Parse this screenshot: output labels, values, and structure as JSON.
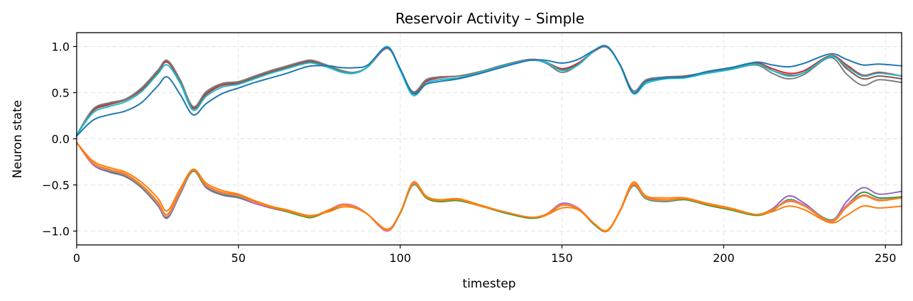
{
  "chart_data": {
    "type": "line",
    "title": "Reservoir Activity – Simple",
    "xlabel": "timestep",
    "ylabel": "Neuron state",
    "xlim": [
      0,
      255
    ],
    "ylim": [
      -1.15,
      1.15
    ],
    "xticks": [
      0,
      50,
      100,
      150,
      200,
      250
    ],
    "yticks": [
      -1.0,
      -0.5,
      0.0,
      0.5,
      1.0
    ],
    "xtick_labels": [
      "0",
      "50",
      "100",
      "150",
      "200",
      "250"
    ],
    "ytick_labels": [
      "−1.0",
      "−0.5",
      "0.0",
      "0.5",
      "1.0"
    ],
    "grid": true,
    "legend": "none",
    "x": [
      0,
      5,
      10,
      15,
      20,
      25,
      28,
      32,
      36,
      40,
      45,
      50,
      55,
      60,
      65,
      70,
      73,
      78,
      82,
      86,
      90,
      96,
      100,
      104,
      108,
      112,
      118,
      125,
      132,
      140,
      145,
      150,
      155,
      160,
      164,
      168,
      172,
      176,
      182,
      188,
      195,
      202,
      210,
      215,
      220,
      225,
      233,
      238,
      243,
      248,
      255
    ],
    "series": [
      {
        "color": "#d62728",
        "values": [
          0.04,
          0.3,
          0.37,
          0.42,
          0.53,
          0.72,
          0.83,
          0.62,
          0.33,
          0.48,
          0.58,
          0.6,
          0.66,
          0.72,
          0.77,
          0.82,
          0.83,
          0.78,
          0.73,
          0.72,
          0.78,
          0.98,
          0.75,
          0.5,
          0.62,
          0.66,
          0.68,
          0.73,
          0.8,
          0.85,
          0.83,
          0.76,
          0.82,
          0.95,
          0.99,
          0.8,
          0.52,
          0.62,
          0.66,
          0.68,
          0.72,
          0.76,
          0.82,
          0.76,
          0.71,
          0.74,
          0.9,
          0.8,
          0.69,
          0.72,
          0.68
        ]
      },
      {
        "color": "#8c564b",
        "values": [
          0.04,
          0.31,
          0.38,
          0.42,
          0.54,
          0.73,
          0.84,
          0.63,
          0.34,
          0.49,
          0.59,
          0.61,
          0.67,
          0.73,
          0.78,
          0.83,
          0.84,
          0.78,
          0.73,
          0.72,
          0.78,
          0.98,
          0.75,
          0.5,
          0.63,
          0.67,
          0.68,
          0.73,
          0.8,
          0.86,
          0.83,
          0.75,
          0.81,
          0.95,
          0.99,
          0.8,
          0.52,
          0.63,
          0.67,
          0.68,
          0.72,
          0.76,
          0.81,
          0.74,
          0.69,
          0.72,
          0.9,
          0.76,
          0.65,
          0.68,
          0.65
        ]
      },
      {
        "color": "#7f7f7f",
        "values": [
          0.04,
          0.32,
          0.39,
          0.43,
          0.55,
          0.74,
          0.85,
          0.64,
          0.35,
          0.51,
          0.6,
          0.62,
          0.68,
          0.74,
          0.79,
          0.84,
          0.85,
          0.79,
          0.74,
          0.72,
          0.78,
          0.98,
          0.75,
          0.51,
          0.64,
          0.67,
          0.68,
          0.73,
          0.8,
          0.86,
          0.82,
          0.72,
          0.8,
          0.95,
          0.99,
          0.8,
          0.52,
          0.64,
          0.67,
          0.67,
          0.71,
          0.75,
          0.8,
          0.71,
          0.65,
          0.7,
          0.88,
          0.7,
          0.58,
          0.64,
          0.61
        ]
      },
      {
        "color": "#17becf",
        "values": [
          0.04,
          0.28,
          0.35,
          0.4,
          0.51,
          0.7,
          0.8,
          0.6,
          0.31,
          0.46,
          0.56,
          0.59,
          0.65,
          0.71,
          0.76,
          0.81,
          0.82,
          0.77,
          0.72,
          0.71,
          0.78,
          1.0,
          0.74,
          0.47,
          0.6,
          0.64,
          0.66,
          0.72,
          0.79,
          0.85,
          0.83,
          0.74,
          0.8,
          0.96,
          1.0,
          0.79,
          0.49,
          0.6,
          0.65,
          0.66,
          0.71,
          0.75,
          0.81,
          0.74,
          0.68,
          0.72,
          0.89,
          0.78,
          0.68,
          0.71,
          0.68
        ]
      },
      {
        "color": "#1f77b4",
        "values": [
          0.03,
          0.2,
          0.26,
          0.3,
          0.39,
          0.57,
          0.67,
          0.48,
          0.26,
          0.38,
          0.49,
          0.55,
          0.61,
          0.66,
          0.71,
          0.77,
          0.79,
          0.79,
          0.77,
          0.77,
          0.8,
          0.99,
          0.76,
          0.49,
          0.59,
          0.62,
          0.65,
          0.71,
          0.78,
          0.85,
          0.85,
          0.82,
          0.86,
          0.96,
          1.0,
          0.8,
          0.5,
          0.62,
          0.66,
          0.67,
          0.73,
          0.77,
          0.83,
          0.8,
          0.78,
          0.82,
          0.92,
          0.86,
          0.8,
          0.81,
          0.79
        ]
      },
      {
        "color": "#9467bd",
        "values": [
          -0.04,
          -0.28,
          -0.36,
          -0.41,
          -0.53,
          -0.72,
          -0.86,
          -0.6,
          -0.35,
          -0.53,
          -0.61,
          -0.64,
          -0.7,
          -0.75,
          -0.79,
          -0.84,
          -0.85,
          -0.77,
          -0.71,
          -0.73,
          -0.82,
          -1.0,
          -0.8,
          -0.49,
          -0.64,
          -0.68,
          -0.67,
          -0.73,
          -0.79,
          -0.86,
          -0.82,
          -0.7,
          -0.75,
          -0.93,
          -1.0,
          -0.78,
          -0.5,
          -0.64,
          -0.67,
          -0.65,
          -0.71,
          -0.76,
          -0.82,
          -0.76,
          -0.62,
          -0.7,
          -0.89,
          -0.68,
          -0.53,
          -0.6,
          -0.57
        ]
      },
      {
        "color": "#2ca02c",
        "values": [
          -0.04,
          -0.27,
          -0.35,
          -0.4,
          -0.52,
          -0.71,
          -0.85,
          -0.59,
          -0.35,
          -0.52,
          -0.6,
          -0.63,
          -0.69,
          -0.74,
          -0.79,
          -0.84,
          -0.85,
          -0.78,
          -0.72,
          -0.74,
          -0.82,
          -1.0,
          -0.81,
          -0.5,
          -0.64,
          -0.68,
          -0.67,
          -0.73,
          -0.8,
          -0.86,
          -0.83,
          -0.72,
          -0.76,
          -0.93,
          -1.0,
          -0.78,
          -0.51,
          -0.65,
          -0.68,
          -0.66,
          -0.72,
          -0.77,
          -0.83,
          -0.78,
          -0.66,
          -0.72,
          -0.88,
          -0.72,
          -0.58,
          -0.64,
          -0.63
        ]
      },
      {
        "color": "#e377c2",
        "values": [
          -0.04,
          -0.27,
          -0.34,
          -0.39,
          -0.51,
          -0.7,
          -0.84,
          -0.58,
          -0.34,
          -0.51,
          -0.59,
          -0.62,
          -0.69,
          -0.74,
          -0.78,
          -0.83,
          -0.84,
          -0.77,
          -0.71,
          -0.73,
          -0.82,
          -1.0,
          -0.8,
          -0.49,
          -0.63,
          -0.67,
          -0.66,
          -0.73,
          -0.79,
          -0.85,
          -0.82,
          -0.71,
          -0.75,
          -0.92,
          -1.0,
          -0.78,
          -0.5,
          -0.64,
          -0.67,
          -0.65,
          -0.71,
          -0.76,
          -0.82,
          -0.77,
          -0.67,
          -0.72,
          -0.89,
          -0.72,
          -0.61,
          -0.66,
          -0.64
        ]
      },
      {
        "color": "#ff7f0e",
        "values": [
          -0.04,
          -0.24,
          -0.31,
          -0.36,
          -0.47,
          -0.64,
          -0.78,
          -0.54,
          -0.33,
          -0.48,
          -0.56,
          -0.6,
          -0.67,
          -0.73,
          -0.77,
          -0.82,
          -0.83,
          -0.79,
          -0.74,
          -0.75,
          -0.82,
          -0.98,
          -0.8,
          -0.47,
          -0.62,
          -0.66,
          -0.65,
          -0.72,
          -0.79,
          -0.85,
          -0.83,
          -0.75,
          -0.77,
          -0.92,
          -0.99,
          -0.77,
          -0.47,
          -0.62,
          -0.64,
          -0.64,
          -0.7,
          -0.75,
          -0.82,
          -0.79,
          -0.73,
          -0.77,
          -0.91,
          -0.83,
          -0.73,
          -0.75,
          -0.73
        ]
      },
      {
        "color": "#ff7f0e",
        "values": [
          -0.04,
          -0.26,
          -0.33,
          -0.38,
          -0.5,
          -0.68,
          -0.82,
          -0.56,
          -0.34,
          -0.5,
          -0.58,
          -0.61,
          -0.68,
          -0.74,
          -0.78,
          -0.83,
          -0.84,
          -0.77,
          -0.72,
          -0.74,
          -0.82,
          -0.99,
          -0.8,
          -0.48,
          -0.63,
          -0.67,
          -0.66,
          -0.73,
          -0.79,
          -0.85,
          -0.82,
          -0.72,
          -0.76,
          -0.92,
          -1.0,
          -0.78,
          -0.49,
          -0.63,
          -0.66,
          -0.65,
          -0.71,
          -0.76,
          -0.82,
          -0.77,
          -0.68,
          -0.73,
          -0.9,
          -0.74,
          -0.62,
          -0.67,
          -0.64
        ]
      }
    ]
  }
}
